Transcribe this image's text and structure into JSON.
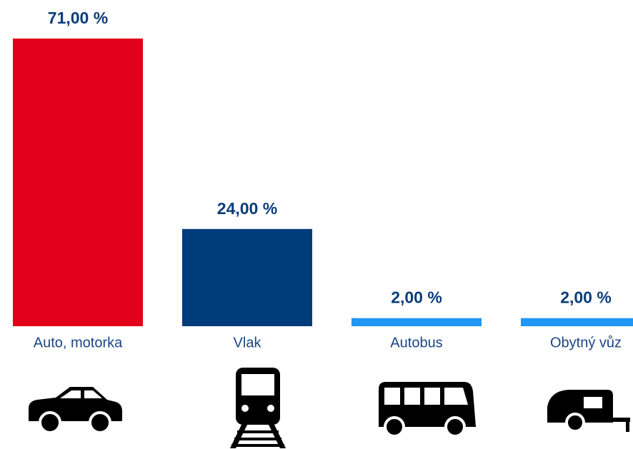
{
  "chart_data": {
    "type": "bar",
    "categories": [
      "Auto, motorka",
      "Vlak",
      "Autobus",
      "Obytný vůz"
    ],
    "values": [
      71,
      24,
      2,
      2
    ],
    "value_labels": [
      "71,00 %",
      "24,00 %",
      "2,00 %",
      "2,00 %"
    ],
    "colors": [
      "#e2001a",
      "#003c7a",
      "#2196f3",
      "#2196f3"
    ]
  }
}
